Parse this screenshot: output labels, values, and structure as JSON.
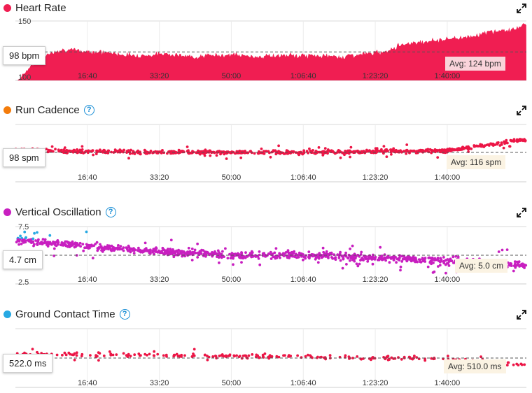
{
  "colors": {
    "hr": "#f01e52",
    "cadence_dot": "#f47c0b",
    "cadence_points": "#ec1646",
    "vo_dot": "#c81fc0",
    "vo_points": "#c81fc0",
    "vo_points_high": "#27a9e3",
    "gct_dot": "#27a9e3",
    "gct_points": "#ec1646",
    "help": "#1a8fd6",
    "avg_hr_bg": "#fad3da",
    "avg_bg": "#fbf3e3"
  },
  "x_ticks": [
    "16:40",
    "33:20",
    "50:00",
    "1:06:40",
    "1:23:20",
    "1:40:00"
  ],
  "panels": {
    "hr": {
      "title": "Heart Rate",
      "has_help": false,
      "current": "98 bpm",
      "avg": "Avg: 124 bpm",
      "y_top": "150",
      "y_bottom": "100",
      "icons": {
        "dot": "status-dot-icon",
        "expand": "expand-icon"
      }
    },
    "cadence": {
      "title": "Run Cadence",
      "has_help": true,
      "current": "98 spm",
      "avg": "Avg: 116 spm",
      "icons": {
        "dot": "status-dot-icon",
        "help": "help-icon",
        "expand": "expand-icon"
      }
    },
    "vo": {
      "title": "Vertical Oscillation",
      "has_help": true,
      "current": "4.7 cm",
      "avg": "Avg: 5.0 cm",
      "y_top": "7.5",
      "y_bottom": "2.5",
      "icons": {
        "dot": "status-dot-icon",
        "help": "help-icon",
        "expand": "expand-icon"
      }
    },
    "gct": {
      "title": "Ground Contact Time",
      "has_help": true,
      "current": "522.0 ms",
      "avg": "Avg: 510.0 ms",
      "icons": {
        "dot": "status-dot-icon",
        "help": "help-icon",
        "expand": "expand-icon"
      }
    }
  },
  "chart_data": [
    {
      "type": "area",
      "title": "Heart Rate",
      "xlabel": "",
      "ylabel": "bpm",
      "x_unit": "elapsed time (seconds)",
      "xlim": [
        0,
        7100
      ],
      "ylim": [
        100,
        150
      ],
      "x": [
        0,
        300,
        600,
        900,
        1200,
        1500,
        1800,
        2100,
        2400,
        2700,
        3000,
        3300,
        3600,
        3900,
        4200,
        4500,
        4800,
        5100,
        5400,
        5700,
        6000,
        6300,
        6600,
        6900,
        7100
      ],
      "values": [
        98,
        118,
        126,
        125,
        124,
        122,
        121,
        123,
        120,
        121,
        122,
        120,
        121,
        121,
        121,
        120,
        122,
        124,
        131,
        133,
        135,
        137,
        141,
        143,
        147
      ],
      "average": 124,
      "current": 98
    },
    {
      "type": "scatter",
      "title": "Run Cadence",
      "ylabel": "spm",
      "x_unit": "elapsed time (seconds)",
      "xlim": [
        0,
        7100
      ],
      "ylim": [
        80,
        150
      ],
      "trend_x": [
        0,
        1000,
        2000,
        3000,
        4000,
        5000,
        6000,
        6500,
        7100
      ],
      "trend_y": [
        118,
        117,
        116,
        116,
        116,
        117,
        118,
        124,
        132
      ],
      "average": 116,
      "current": 98
    },
    {
      "type": "scatter",
      "title": "Vertical Oscillation",
      "ylabel": "cm",
      "x_unit": "elapsed time (seconds)",
      "xlim": [
        0,
        7100
      ],
      "ylim": [
        2.5,
        7.5
      ],
      "trend_x": [
        0,
        1000,
        2000,
        3000,
        4000,
        5000,
        6000,
        7100
      ],
      "trend_y": [
        6.3,
        5.8,
        5.3,
        5.0,
        5.0,
        4.8,
        4.5,
        4.1
      ],
      "average": 5.0,
      "current": 4.7
    },
    {
      "type": "scatter",
      "title": "Ground Contact Time",
      "ylabel": "ms",
      "x_unit": "elapsed time (seconds)",
      "xlim": [
        0,
        7100
      ],
      "ylim": [
        460,
        560
      ],
      "trend_x": [
        0,
        2000,
        4000,
        6000,
        7100
      ],
      "trend_y": [
        517,
        515,
        512,
        508,
        498
      ],
      "average": 510.0,
      "current": 522.0
    }
  ]
}
